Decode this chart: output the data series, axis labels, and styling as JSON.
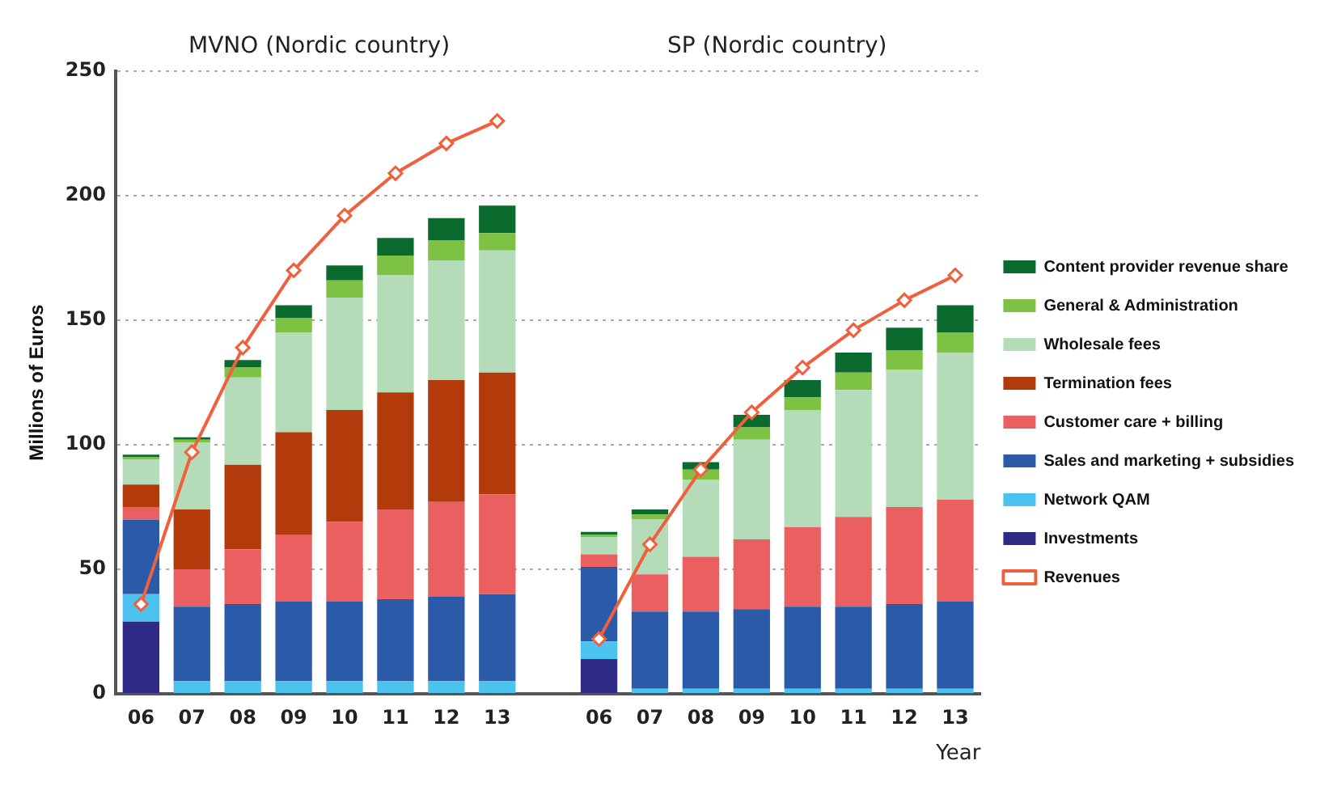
{
  "chart_data": {
    "type": "bar",
    "stacked": true,
    "ylabel": "Millions of Euros",
    "xlabel": "Year",
    "annotations": [
      "MVNO (Nordic country)",
      "SP (Nordic country)"
    ],
    "categories": [
      "06",
      "07",
      "08",
      "09",
      "10",
      "11",
      "12",
      "13",
      null,
      "06",
      "07",
      "08",
      "09",
      "10",
      "11",
      "12",
      "13"
    ],
    "ylim": [
      0,
      250
    ],
    "yticks": [
      0,
      50,
      100,
      150,
      200,
      250
    ],
    "grid": "y",
    "legend": "right",
    "series": [
      {
        "name": "Revenues",
        "type": "line",
        "color": "#f0603c",
        "marker": "diamond",
        "line_style": "solid",
        "values": [
          36,
          97,
          139,
          170,
          192,
          209,
          221,
          230,
          null,
          22,
          60,
          90,
          113,
          131,
          146,
          158,
          168
        ]
      },
      {
        "name": "Investments",
        "color": "#2e2a86",
        "values": [
          29,
          0,
          0,
          0,
          0,
          0,
          0,
          0,
          null,
          14,
          0,
          0,
          0,
          0,
          0,
          0,
          0
        ]
      },
      {
        "name": "Network QAM",
        "color": "#4cc3ee",
        "values": [
          11,
          5,
          5,
          5,
          5,
          5,
          5,
          5,
          null,
          7,
          2,
          2,
          2,
          2,
          2,
          2,
          2
        ]
      },
      {
        "name": "Sales and marketing + subsidies",
        "color": "#2a5aa8",
        "values": [
          30,
          30,
          31,
          32,
          32,
          33,
          34,
          35,
          null,
          30,
          31,
          31,
          32,
          33,
          33,
          34,
          35
        ]
      },
      {
        "name": "Customer care + billing",
        "color": "#ea6060",
        "values": [
          5,
          15,
          22,
          27,
          32,
          36,
          38,
          40,
          null,
          5,
          15,
          22,
          28,
          32,
          36,
          39,
          41
        ]
      },
      {
        "name": "Termination fees",
        "color": "#b23a0b",
        "values": [
          9,
          24,
          34,
          41,
          45,
          47,
          49,
          49,
          null,
          0,
          0,
          0,
          0,
          0,
          0,
          0,
          0
        ]
      },
      {
        "name": "Wholesale fees",
        "color": "#b5dcb8",
        "values": [
          10,
          27,
          35,
          40,
          45,
          47,
          48,
          49,
          null,
          7,
          22,
          31,
          40,
          47,
          51,
          55,
          59
        ]
      },
      {
        "name": "General & Administration",
        "color": "#7dc242",
        "values": [
          1,
          1,
          4,
          6,
          7,
          8,
          8,
          7,
          null,
          1,
          2,
          4,
          5,
          5,
          7,
          8,
          8
        ]
      },
      {
        "name": "Content provider revenue share",
        "color": "#0b6b2e",
        "values": [
          1,
          1,
          3,
          5,
          6,
          7,
          9,
          11,
          null,
          1,
          2,
          3,
          5,
          7,
          8,
          9,
          11
        ]
      }
    ]
  }
}
